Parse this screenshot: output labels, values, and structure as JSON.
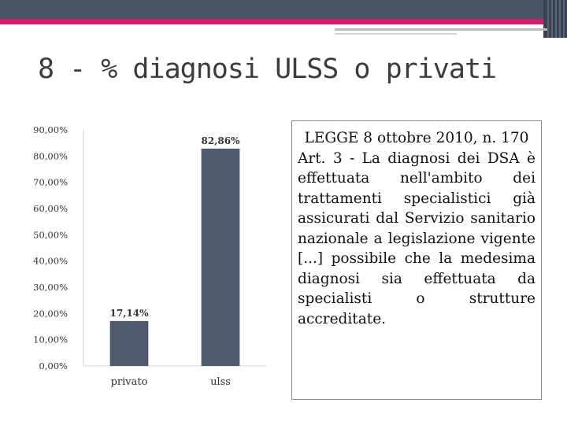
{
  "slide": {
    "title": "8 - % diagnosi ULSS o privati"
  },
  "law_box": {
    "heading": "LEGGE 8 ottobre 2010, n. 170",
    "body": "Art. 3 - La diagnosi dei DSA è effettuata nell'ambito dei trattamenti specialistici già assicurati dal Servizio sanitario nazionale a legislazione vigente [...] possibile che la medesima diagnosi sia effettuata da specialisti o strutture accreditate."
  },
  "colors": {
    "bar": "#4f5a6d",
    "accent": "#d81b6a",
    "header": "#4a5565"
  },
  "chart_data": {
    "type": "bar",
    "categories": [
      "privato",
      "ulss"
    ],
    "values": [
      17.14,
      82.86
    ],
    "value_labels": [
      "17,14%",
      "82,86%"
    ],
    "ylim": [
      0,
      90
    ],
    "yticks": [
      0,
      10,
      20,
      30,
      40,
      50,
      60,
      70,
      80,
      90
    ],
    "ytick_labels": [
      "0,00%",
      "10,00%",
      "20,00%",
      "30,00%",
      "40,00%",
      "50,00%",
      "60,00%",
      "70,00%",
      "80,00%",
      "90,00%"
    ],
    "title": "",
    "xlabel": "",
    "ylabel": "",
    "grid": false,
    "legend": "none"
  }
}
